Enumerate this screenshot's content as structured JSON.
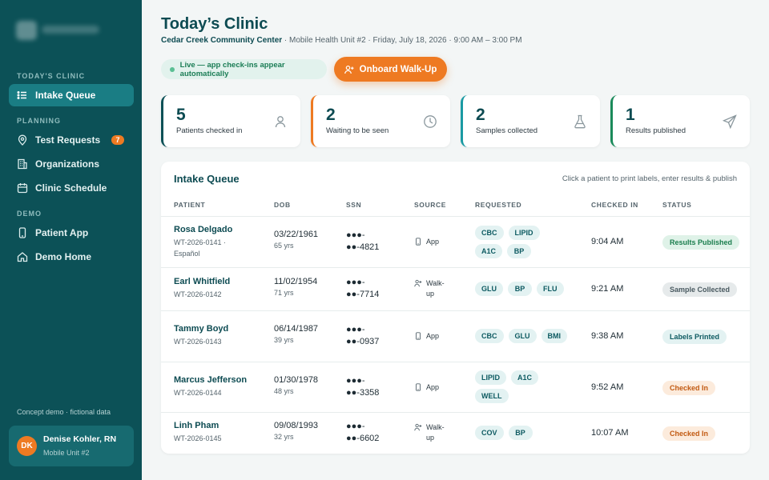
{
  "sidebar": {
    "sections": {
      "today": "TODAY'S CLINIC",
      "planning": "PLANNING",
      "demo": "DEMO"
    },
    "items": {
      "intake": "Intake Queue",
      "test_requests": "Test Requests",
      "test_requests_badge": "7",
      "organizations": "Organizations",
      "schedule": "Clinic Schedule",
      "patient_app": "Patient App",
      "demo_home": "Demo Home"
    },
    "footer_note": "Concept demo · fictional data",
    "user": {
      "initials": "DK",
      "name": "Denise Kohler, RN",
      "role": "Mobile Unit #2"
    }
  },
  "header": {
    "title": "Today’s Clinic",
    "location": "Cedar Creek Community Center",
    "details": " · Mobile Health Unit #2 · Friday, July 18, 2026 · 9:00 AM – 3:00 PM",
    "live_text": "Live — app check-ins appear automatically",
    "onboard_label": "Onboard Walk-Up"
  },
  "stats": [
    {
      "value": "5",
      "label": "Patients checked in",
      "icon": "person-icon",
      "accent": "#0c5157"
    },
    {
      "value": "2",
      "label": "Waiting to be seen",
      "icon": "clock-icon",
      "accent": "#ee7a22"
    },
    {
      "value": "2",
      "label": "Samples collected",
      "icon": "flask-icon",
      "accent": "#1a9aa3"
    },
    {
      "value": "1",
      "label": "Results published",
      "icon": "send-icon",
      "accent": "#1a8a5a"
    }
  ],
  "queue": {
    "title": "Intake Queue",
    "hint": "Click a patient to print labels, enter results & publish",
    "columns": {
      "patient": "PATIENT",
      "dob": "DOB",
      "ssn": "SSN",
      "source": "SOURCE",
      "requested": "REQUESTED",
      "checked_in": "CHECKED IN",
      "status": "STATUS"
    },
    "rows": [
      {
        "name": "Rosa Delgado",
        "id": "WT-2026-0141 · Español",
        "dob": "03/22/1961",
        "age": "65 yrs",
        "ssn_mask": "●●●-",
        "ssn_tail": "●●-4821",
        "source": "App",
        "source_icon": "phone-icon",
        "tests": [
          "CBC",
          "LIPID",
          "A1C",
          "BP"
        ],
        "checked_in": "9:04 AM",
        "status": "Results Published",
        "status_bg": "#dff2e8",
        "status_fg": "#1a7d4d"
      },
      {
        "name": "Earl Whitfield",
        "id": "WT-2026-0142",
        "dob": "11/02/1954",
        "age": "71 yrs",
        "ssn_mask": "●●●-",
        "ssn_tail": "●●-7714",
        "source": "Walk-up",
        "source_icon": "walk-up-icon",
        "tests": [
          "GLU",
          "BP",
          "FLU"
        ],
        "checked_in": "9:21 AM",
        "status": "Sample Collected",
        "status_bg": "#e6eaeb",
        "status_fg": "#4a5a61"
      },
      {
        "name": "Tammy Boyd",
        "id": "WT-2026-0143",
        "dob": "06/14/1987",
        "age": "39 yrs",
        "ssn_mask": "●●●-",
        "ssn_tail": "●●-0937",
        "source": "App",
        "source_icon": "phone-icon",
        "tests": [
          "CBC",
          "GLU",
          "BMI"
        ],
        "checked_in": "9:38 AM",
        "status": "Labels Printed",
        "status_bg": "#e3f2f2",
        "status_fg": "#0d5a61"
      },
      {
        "name": "Marcus Jefferson",
        "id": "WT-2026-0144",
        "dob": "01/30/1978",
        "age": "48 yrs",
        "ssn_mask": "●●●-",
        "ssn_tail": "●●-3358",
        "source": "App",
        "source_icon": "phone-icon",
        "tests": [
          "LIPID",
          "A1C",
          "WELL"
        ],
        "checked_in": "9:52 AM",
        "status": "Checked In",
        "status_bg": "#fcebdc",
        "status_fg": "#c25a12"
      },
      {
        "name": "Linh Pham",
        "id": "WT-2026-0145",
        "dob": "09/08/1993",
        "age": "32 yrs",
        "ssn_mask": "●●●-",
        "ssn_tail": "●●-6602",
        "source": "Walk-up",
        "source_icon": "walk-up-icon",
        "tests": [
          "COV",
          "BP"
        ],
        "checked_in": "10:07 AM",
        "status": "Checked In",
        "status_bg": "#fcebdc",
        "status_fg": "#c25a12"
      }
    ]
  }
}
